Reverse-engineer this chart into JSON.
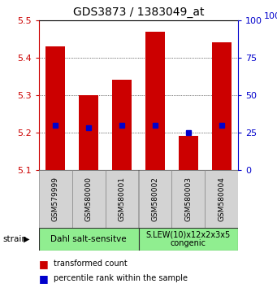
{
  "title": "GDS3873 / 1383049_at",
  "samples": [
    "GSM579999",
    "GSM580000",
    "GSM580001",
    "GSM580002",
    "GSM580003",
    "GSM580004"
  ],
  "bar_tops": [
    5.43,
    5.3,
    5.34,
    5.47,
    5.19,
    5.44
  ],
  "bar_base": 5.1,
  "blue_pct": [
    30,
    28,
    30,
    30,
    25,
    30
  ],
  "ylim_left": [
    5.1,
    5.5
  ],
  "ylim_right": [
    0,
    100
  ],
  "yticks_left": [
    5.1,
    5.2,
    5.3,
    5.4,
    5.5
  ],
  "yticks_right": [
    0,
    25,
    50,
    75,
    100
  ],
  "bar_color": "#cc0000",
  "blue_color": "#0000cc",
  "group1_label": "Dahl salt-sensitve",
  "group2_label": "S.LEW(10)x12x2x3x5\ncongenic",
  "group_bg_color": "#90ee90",
  "sample_bg_color": "#d3d3d3",
  "legend_red_label": "transformed count",
  "legend_blue_label": "percentile rank within the sample",
  "strain_label": "strain",
  "bar_width": 0.6
}
